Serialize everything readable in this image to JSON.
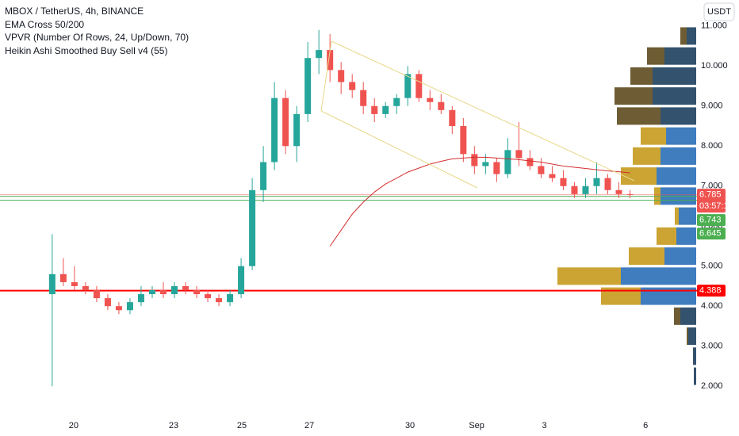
{
  "chart_data": {
    "type": "candlestick",
    "title": "MBOX / TetherUS, 4h, BINANCE",
    "indicators": [
      "EMA Cross 50/200",
      "VPVR (Number Of Rows, 24, Up/Down, 70)",
      "Heikin Ashi Smoothed Buy Sell v4  (55)"
    ],
    "currency": "USDT",
    "open": [
      4.3,
      4.8,
      4.6,
      4.5,
      4.4,
      4.2,
      4.0,
      3.9,
      4.1,
      4.3,
      4.4,
      4.3,
      4.5,
      4.4,
      4.3,
      4.2,
      4.1,
      4.3,
      5.0,
      6.9,
      7.6,
      9.2,
      8.0,
      8.8,
      10.2,
      10.4,
      9.9,
      9.6,
      9.4,
      9.0,
      8.8,
      9.0,
      9.2,
      9.8,
      9.2,
      9.1,
      8.9,
      8.5,
      7.8,
      7.5,
      7.6,
      7.3,
      7.9,
      7.7,
      7.5,
      7.3,
      7.2,
      7.0,
      6.8,
      7.0,
      7.2,
      6.9,
      6.8
    ],
    "high": [
      5.8,
      5.2,
      5.0,
      4.6,
      4.5,
      4.3,
      4.1,
      4.2,
      4.5,
      4.5,
      4.6,
      4.6,
      4.6,
      4.5,
      4.4,
      4.3,
      4.4,
      5.2,
      7.2,
      8.0,
      9.6,
      9.4,
      9.0,
      10.6,
      10.9,
      10.8,
      10.1,
      9.8,
      9.6,
      9.2,
      9.1,
      9.3,
      10.0,
      9.9,
      9.4,
      9.3,
      9.0,
      8.7,
      8.0,
      7.8,
      7.7,
      8.2,
      8.6,
      7.9,
      7.7,
      7.5,
      7.4,
      7.1,
      7.2,
      7.6,
      7.3,
      7.1,
      6.9
    ],
    "low": [
      2.0,
      4.5,
      4.4,
      4.3,
      4.1,
      3.9,
      3.8,
      3.8,
      4.0,
      4.2,
      4.2,
      4.2,
      4.3,
      4.2,
      4.1,
      4.0,
      4.0,
      4.2,
      4.9,
      6.6,
      7.4,
      7.8,
      7.6,
      8.6,
      9.8,
      9.6,
      9.3,
      9.2,
      8.8,
      8.6,
      8.7,
      8.8,
      9.0,
      9.1,
      8.9,
      8.8,
      8.3,
      7.6,
      7.3,
      7.3,
      7.1,
      7.2,
      7.5,
      7.4,
      7.2,
      7.1,
      6.9,
      6.7,
      6.7,
      6.8,
      6.8,
      6.7,
      6.7
    ],
    "close": [
      4.8,
      4.6,
      4.5,
      4.4,
      4.2,
      4.0,
      3.9,
      4.1,
      4.3,
      4.4,
      4.3,
      4.5,
      4.4,
      4.3,
      4.2,
      4.1,
      4.3,
      5.0,
      6.9,
      7.6,
      9.2,
      8.0,
      8.8,
      10.2,
      10.4,
      9.9,
      9.6,
      9.4,
      9.0,
      8.8,
      9.0,
      9.2,
      9.8,
      9.2,
      9.1,
      8.9,
      8.5,
      7.8,
      7.5,
      7.6,
      7.3,
      7.9,
      7.7,
      7.5,
      7.3,
      7.2,
      7.0,
      6.8,
      7.0,
      7.2,
      6.9,
      6.8,
      6.785
    ],
    "up_color": "#26a69a",
    "down_color": "#ef5350",
    "ema_values": [
      null,
      null,
      null,
      null,
      null,
      null,
      null,
      null,
      null,
      null,
      null,
      null,
      null,
      null,
      null,
      null,
      null,
      null,
      null,
      null,
      null,
      null,
      null,
      null,
      null,
      5.5,
      5.9,
      6.3,
      6.6,
      6.85,
      7.05,
      7.2,
      7.35,
      7.45,
      7.55,
      7.62,
      7.68,
      7.7,
      7.72,
      7.72,
      7.7,
      7.68,
      7.66,
      7.63,
      7.6,
      7.55,
      7.5,
      7.47,
      7.44,
      7.41,
      7.38,
      7.36,
      7.33
    ],
    "ema_color": "#d32f2f",
    "xlim": [
      -4.7,
      58.1
    ],
    "xticks": [
      {
        "value": 1.93,
        "label": "20"
      },
      {
        "value": 10.93,
        "label": "23"
      },
      {
        "value": 17.07,
        "label": "25"
      },
      {
        "value": 23.14,
        "label": "27"
      },
      {
        "value": 32.2,
        "label": "30"
      },
      {
        "value": 38.2,
        "label": "Sep"
      },
      {
        "value": 44.3,
        "label": "3"
      },
      {
        "value": 53.4,
        "label": "6"
      }
    ],
    "ylim": [
      1.35,
      11.65
    ],
    "yticks": [
      {
        "value": 11,
        "label": "11.000"
      },
      {
        "value": 10,
        "label": "10.000"
      },
      {
        "value": 9,
        "label": "9.000"
      },
      {
        "value": 8,
        "label": "8.000"
      },
      {
        "value": 7,
        "label": "7.000"
      },
      {
        "value": 6,
        "label": "6.000"
      },
      {
        "value": 5,
        "label": "5.000"
      },
      {
        "value": 4,
        "label": "4.000"
      },
      {
        "value": 3,
        "label": "3.000"
      },
      {
        "value": 2,
        "label": "2.000"
      }
    ],
    "volume_profile": {
      "prices": [
        10.75,
        10.25,
        9.75,
        9.25,
        8.75,
        8.25,
        7.75,
        7.25,
        6.75,
        6.25,
        5.75,
        5.25,
        4.75,
        4.25,
        3.75,
        3.25,
        2.75,
        2.25
      ],
      "up": [
        12,
        40,
        55,
        55,
        45,
        38,
        45,
        50,
        45,
        22,
        25,
        40,
        95,
        70,
        20,
        10,
        4,
        3
      ],
      "down": [
        8,
        22,
        28,
        48,
        55,
        32,
        35,
        45,
        8,
        5,
        25,
        45,
        80,
        50,
        8,
        2,
        0,
        0
      ],
      "up_color": "#2a6fb8",
      "down_color": "#c79a1e",
      "outside_up_color": "#1d3f5e",
      "outside_down_color": "#5e4a1e",
      "value_area": [
        4.0,
        8.5
      ]
    },
    "price_lines": [
      {
        "value": 6.785,
        "label": "6.785",
        "color": "#ef5350",
        "countdown": "03:57:18"
      },
      {
        "value": 6.743,
        "label": "6.743",
        "color": "#4caf50"
      },
      {
        "value": 6.645,
        "label": "6.645",
        "color": "#4caf50"
      },
      {
        "value": 4.388,
        "label": "4.388",
        "color": "#ff0000"
      }
    ]
  }
}
